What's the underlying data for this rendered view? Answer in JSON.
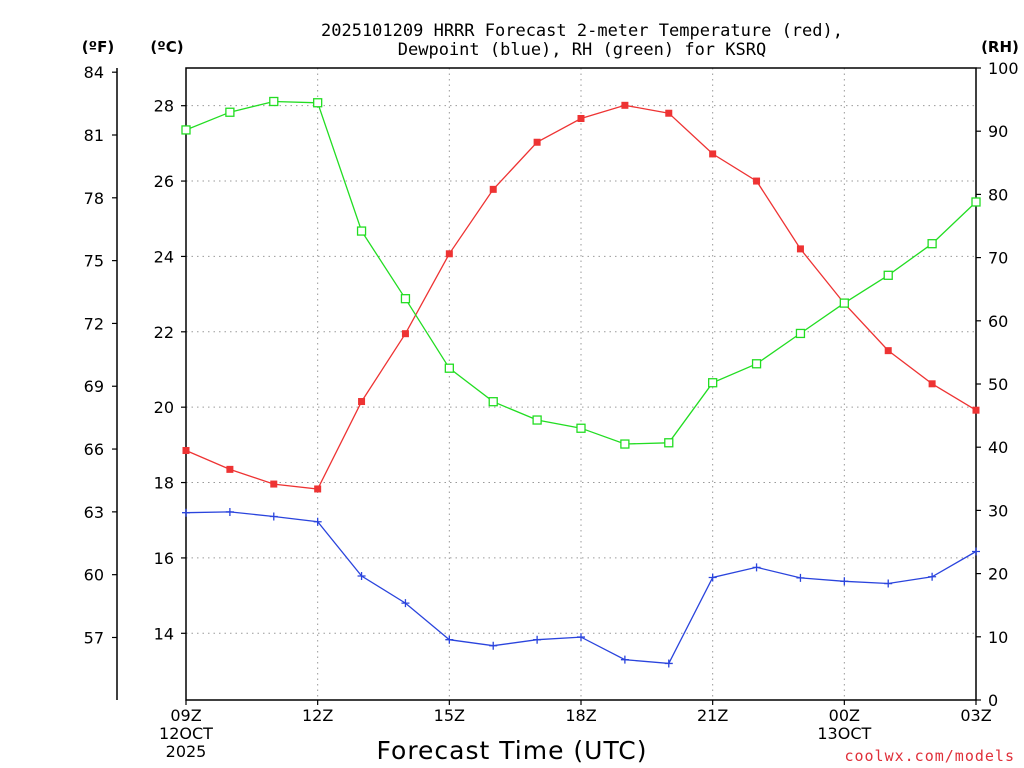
{
  "chart_data": {
    "type": "line",
    "title_line1": "2025101209 HRRR Forecast 2-meter Temperature (red),",
    "title_line2": "Dewpoint (blue), RH (green) for KSRQ",
    "unit_f": "(ºF)",
    "unit_c": "(ºC)",
    "unit_rh": "(RH)",
    "xlabel": "Forecast Time (UTC)",
    "credit": "coolwx.com/models",
    "x_tick_labels": [
      {
        "lines": [
          "09Z",
          "12OCT",
          "2025"
        ],
        "hour": 0
      },
      {
        "lines": [
          "12Z"
        ],
        "hour": 3
      },
      {
        "lines": [
          "15Z"
        ],
        "hour": 6
      },
      {
        "lines": [
          "18Z"
        ],
        "hour": 9
      },
      {
        "lines": [
          "21Z"
        ],
        "hour": 12
      },
      {
        "lines": [
          "00Z",
          "13OCT"
        ],
        "hour": 15
      },
      {
        "lines": [
          "03Z"
        ],
        "hour": 18
      }
    ],
    "x_range": [
      0,
      18
    ],
    "celsius_range": [
      12.23,
      29.0
    ],
    "celsius_ticks": [
      14,
      16,
      18,
      20,
      22,
      24,
      26,
      28
    ],
    "fahrenheit_ticks": [
      57,
      60,
      63,
      66,
      69,
      72,
      75,
      78,
      81,
      84
    ],
    "rh_range": [
      0,
      100
    ],
    "rh_ticks": [
      0,
      10,
      20,
      30,
      40,
      50,
      60,
      70,
      80,
      90,
      100
    ],
    "grid": true,
    "x": [
      0,
      1,
      2,
      3,
      4,
      5,
      6,
      7,
      8,
      9,
      10,
      11,
      12,
      13,
      14,
      15,
      16,
      17,
      18
    ],
    "series": [
      {
        "name": "Temperature",
        "unit": "C",
        "color": "#ee3333",
        "marker": "filled-square",
        "values": [
          18.85,
          18.35,
          17.96,
          17.83,
          20.15,
          21.95,
          24.07,
          25.78,
          27.03,
          27.66,
          28.01,
          27.8,
          26.72,
          26.0,
          24.2,
          22.75,
          21.5,
          20.62,
          19.92
        ]
      },
      {
        "name": "Dewpoint",
        "unit": "C",
        "color": "#2a44dd",
        "marker": "plus",
        "values": [
          17.2,
          17.22,
          17.1,
          16.96,
          15.52,
          14.8,
          13.83,
          13.67,
          13.83,
          13.9,
          13.3,
          13.2,
          15.48,
          15.75,
          15.47,
          15.38,
          15.32,
          15.5,
          16.17
        ]
      },
      {
        "name": "RH",
        "unit": "%",
        "color": "#22dd22",
        "marker": "open-square",
        "values": [
          90.2,
          93.0,
          94.7,
          94.5,
          74.2,
          63.5,
          52.5,
          47.2,
          44.3,
          43.0,
          40.5,
          40.7,
          50.2,
          53.2,
          58.0,
          62.8,
          67.2,
          72.2,
          78.8
        ]
      }
    ]
  }
}
